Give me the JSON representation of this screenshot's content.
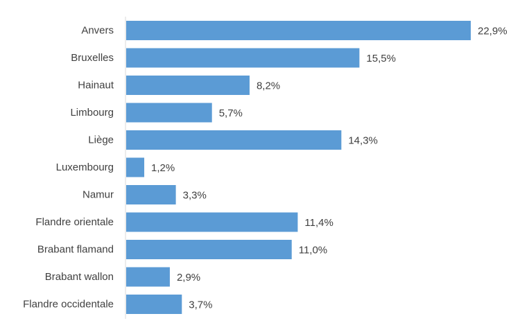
{
  "chart_data": {
    "type": "bar",
    "orientation": "horizontal",
    "categories": [
      "Anvers",
      "Bruxelles",
      "Hainaut",
      "Limbourg",
      "Liège",
      "Luxembourg",
      "Namur",
      "Flandre orientale",
      "Brabant flamand",
      "Brabant wallon",
      "Flandre occidentale"
    ],
    "values": [
      22.9,
      15.5,
      8.2,
      5.7,
      14.3,
      1.2,
      3.3,
      11.4,
      11.0,
      2.9,
      3.7
    ],
    "value_labels": [
      "22,9%",
      "15,5%",
      "8,2%",
      "5,7%",
      "14,3%",
      "1,2%",
      "3,3%",
      "11,4%",
      "11,0%",
      "2,9%",
      "3,7%"
    ],
    "xlim": [
      0,
      25
    ],
    "grid": false,
    "bar_color": "#5b9bd5",
    "axis_color": "#d9d9d9"
  }
}
